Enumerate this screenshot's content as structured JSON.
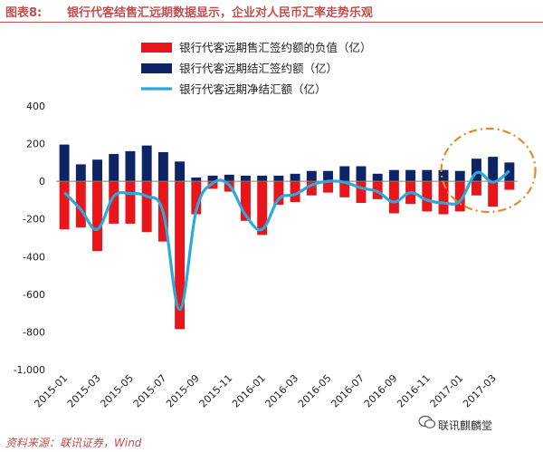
{
  "figure": {
    "label": "图表8:",
    "title": "银行代客结售汇远期数据显示，企业对人民币汇率走势乐观",
    "source": "资料来源：联讯证券，Wind",
    "watermark": "联讯麒麟堂"
  },
  "colors": {
    "red": "#e8151b",
    "navy": "#0f2464",
    "line": "#2ea8dc",
    "circle": "#e08a2e",
    "title": "#c0504d"
  },
  "chart_data": {
    "type": "bar",
    "title": "",
    "xlabel": "",
    "ylabel": "",
    "ylim": [
      -1000,
      400
    ],
    "yticks": [
      400,
      200,
      0,
      -200,
      -400,
      -600,
      -800,
      -1000
    ],
    "ytick_labels": [
      "400",
      "200",
      "0",
      "-200",
      "-400",
      "-600",
      "-800",
      "-1,000"
    ],
    "xtick_labels": [
      "2015-01",
      "2015-03",
      "2015-05",
      "2015-07",
      "2015-09",
      "2015-11",
      "2016-01",
      "2016-03",
      "2016-05",
      "2016-07",
      "2016-09",
      "2016-11",
      "2017-01",
      "2017-03"
    ],
    "categories": [
      "2015-01",
      "2015-02",
      "2015-03",
      "2015-04",
      "2015-05",
      "2015-06",
      "2015-07",
      "2015-08",
      "2015-09",
      "2015-10",
      "2015-11",
      "2015-12",
      "2016-01",
      "2016-02",
      "2016-03",
      "2016-04",
      "2016-05",
      "2016-06",
      "2016-07",
      "2016-08",
      "2016-09",
      "2016-10",
      "2016-11",
      "2016-12",
      "2017-01",
      "2017-02",
      "2017-03",
      "2017-04"
    ],
    "grid": false,
    "legend": "top",
    "series": [
      {
        "name": "银行代客远期售汇签约额的负值（亿）",
        "kind": "bar",
        "color": "#e8151b",
        "values": [
          -255,
          -245,
          -370,
          -225,
          -225,
          -270,
          -320,
          -785,
          -175,
          -40,
          -55,
          -210,
          -285,
          -125,
          -110,
          -75,
          -60,
          -85,
          -115,
          -95,
          -170,
          -120,
          -160,
          -175,
          -160,
          -75,
          -135,
          -45
        ]
      },
      {
        "name": "银行代客远期结汇签约额（亿）",
        "kind": "bar",
        "color": "#0f2464",
        "values": [
          195,
          90,
          115,
          145,
          160,
          190,
          155,
          105,
          20,
          30,
          35,
          30,
          30,
          30,
          40,
          55,
          55,
          80,
          80,
          40,
          60,
          60,
          60,
          60,
          55,
          120,
          130,
          100
        ]
      },
      {
        "name": "银行代客远期净结汇额（亿）",
        "kind": "line",
        "color": "#2ea8dc",
        "values": [
          -60,
          -150,
          -255,
          -80,
          -65,
          -80,
          -165,
          -680,
          -155,
          -10,
          -20,
          -180,
          -255,
          -95,
          -70,
          -20,
          0,
          -5,
          -35,
          -55,
          -110,
          -60,
          -100,
          -115,
          -105,
          45,
          -5,
          55
        ]
      }
    ],
    "annotation": "dash-dot ellipse highlighting 2017-01 to 2017-04"
  }
}
